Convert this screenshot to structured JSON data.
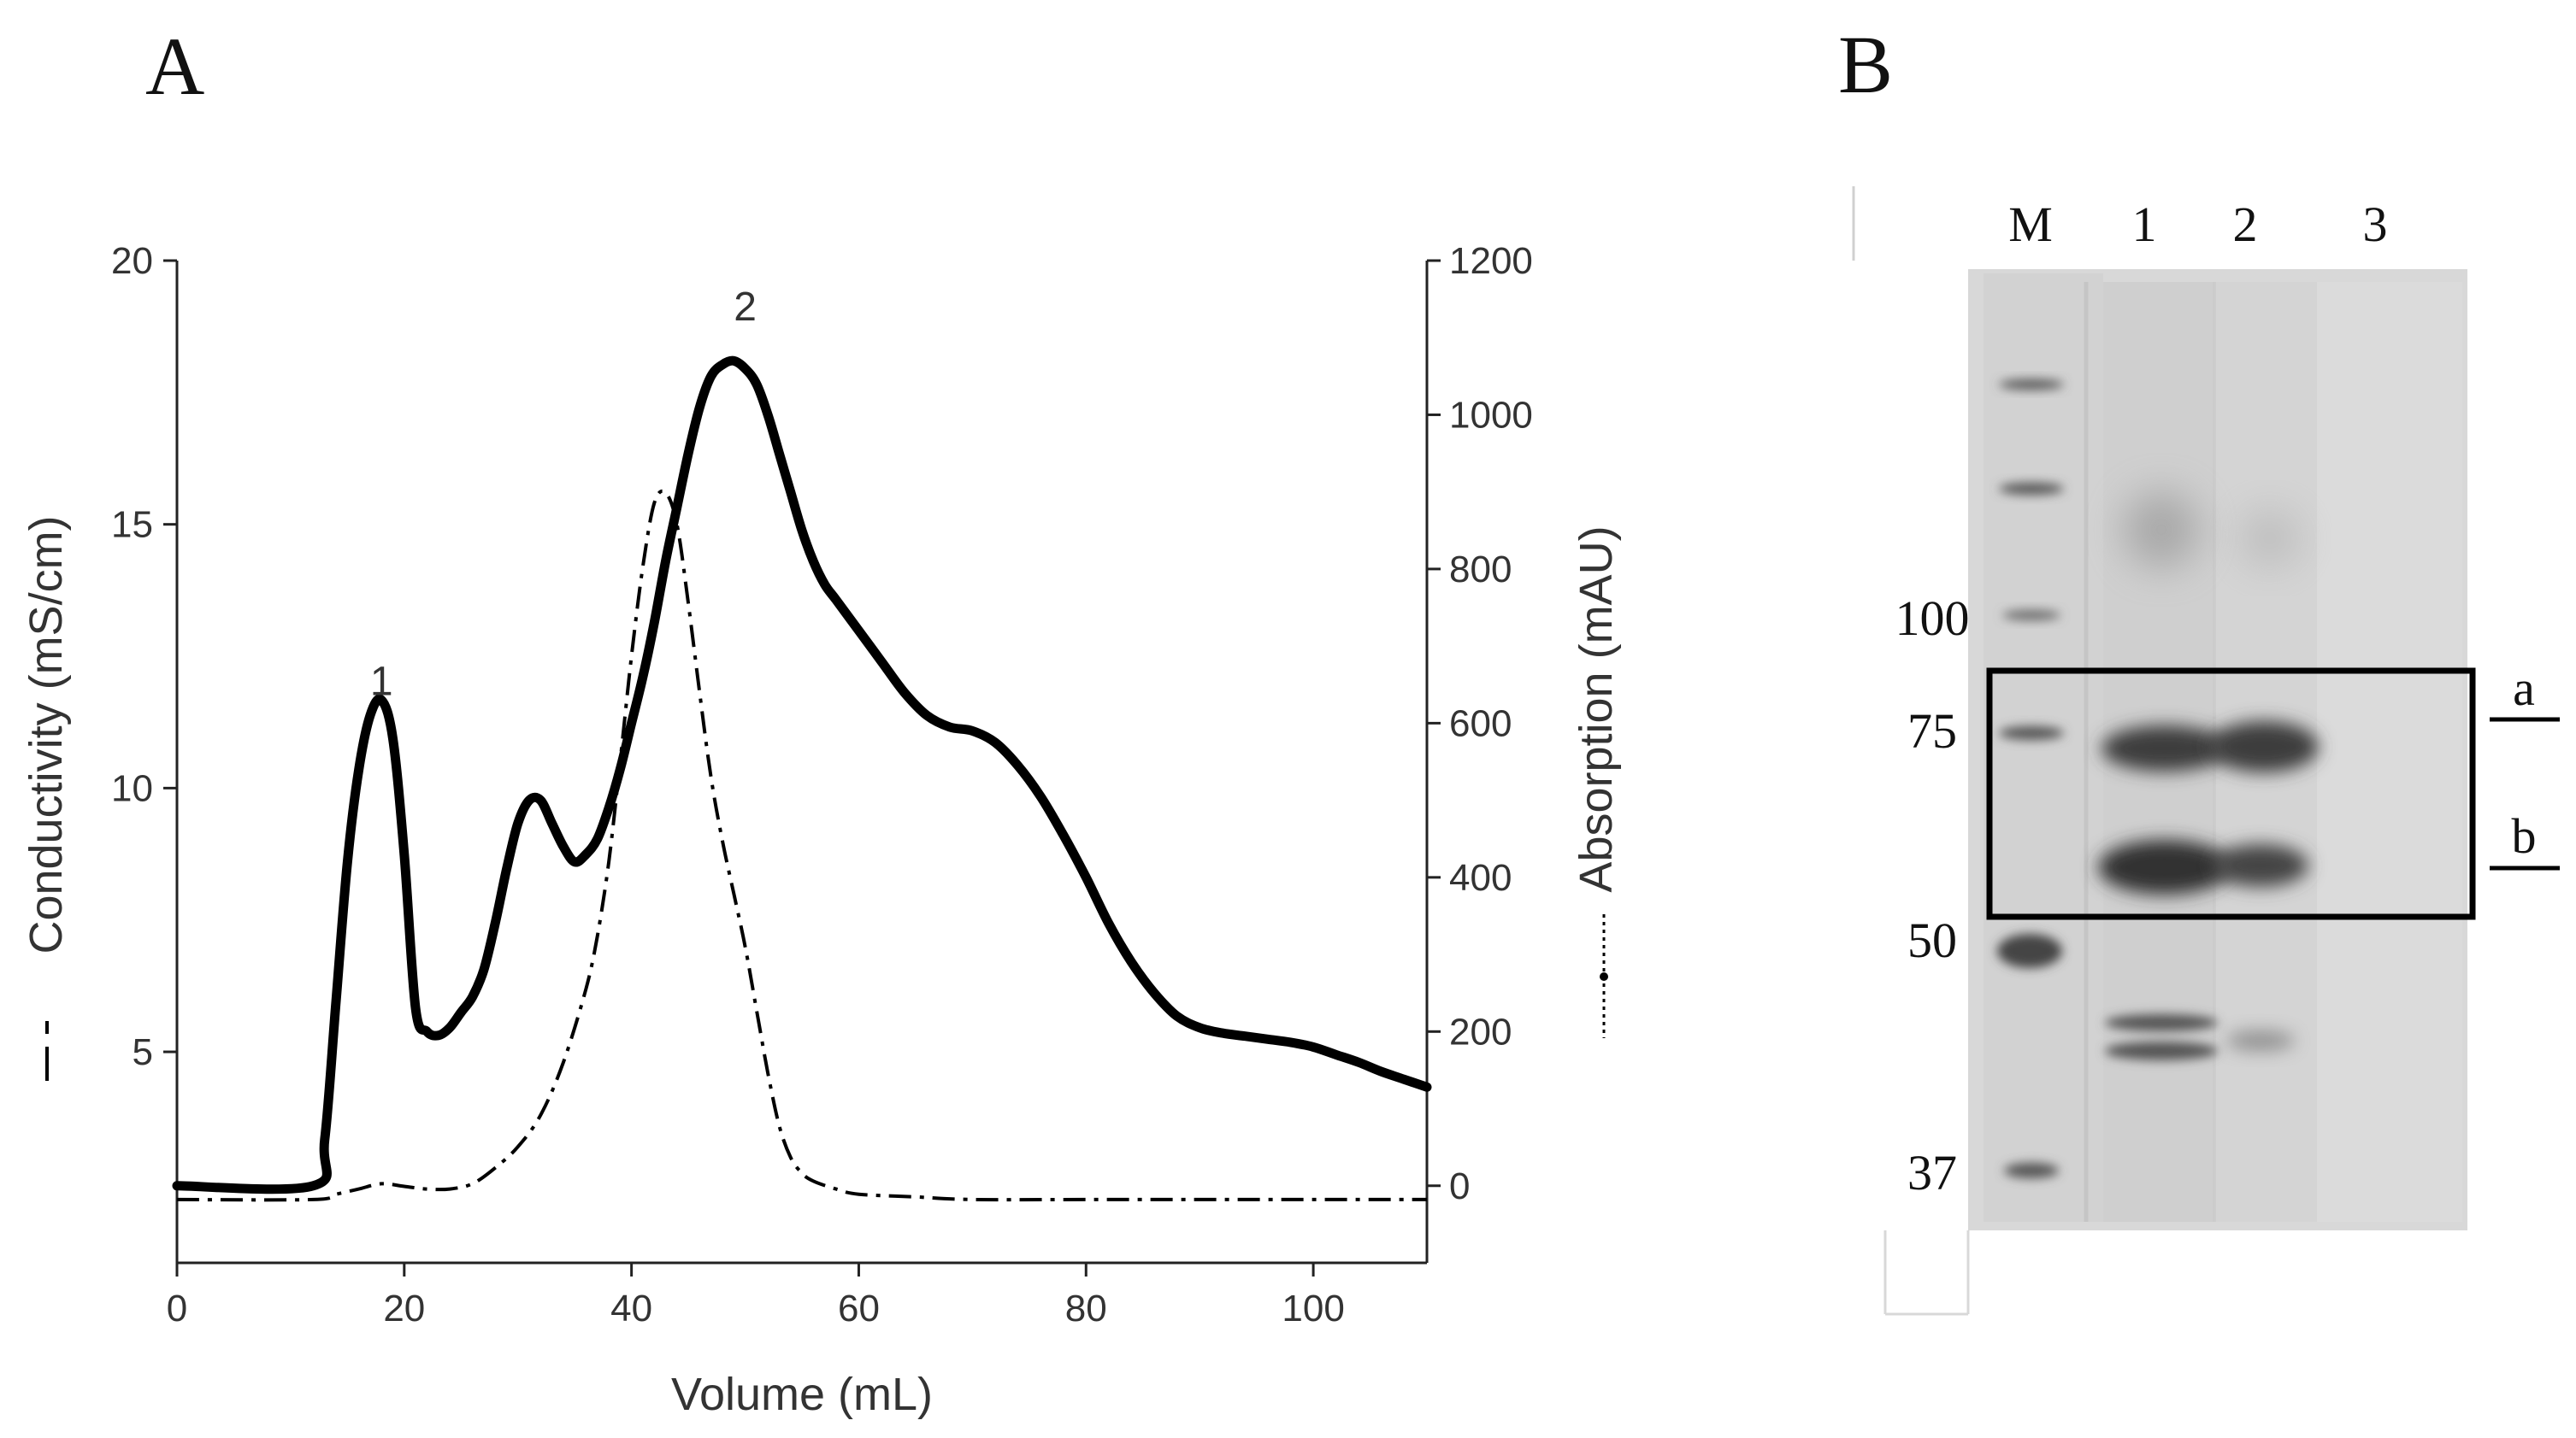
{
  "panels": {
    "a": "A",
    "b": "B"
  },
  "chart_data": [
    {
      "type": "line",
      "panel": "A",
      "title": "",
      "xlabel": "Volume (mL)",
      "ylabel_left": "Conductivity (mS/cm)",
      "ylabel_right": "Absorption (mAU)",
      "xlim": [
        0,
        110
      ],
      "ylim_left": [
        1,
        20
      ],
      "ylim_right": [
        -100,
        1200
      ],
      "x_ticks": [
        0,
        20,
        40,
        60,
        80,
        100
      ],
      "y_left_ticks": [
        5,
        10,
        15,
        20
      ],
      "y_right_ticks": [
        0,
        200,
        400,
        600,
        800,
        1000,
        1200
      ],
      "peak_labels": [
        {
          "label": "1",
          "x": 18,
          "y": 11.2
        },
        {
          "label": "2",
          "x": 50,
          "y": 18.3
        }
      ],
      "series": [
        {
          "name": "Absorption (mAU)",
          "axis": "right",
          "style": "solid-thick",
          "x": [
            0,
            12,
            13,
            14,
            15,
            16,
            17,
            18,
            19,
            20,
            21,
            22,
            23,
            24,
            25,
            26,
            27,
            28,
            29,
            30,
            31,
            32,
            33,
            34,
            35,
            36,
            37,
            38,
            39,
            40,
            41,
            42,
            43,
            44,
            45,
            46,
            47,
            48,
            49,
            50,
            51,
            52,
            53,
            54,
            55,
            56,
            57,
            58,
            60,
            62,
            64,
            66,
            68,
            70,
            72,
            74,
            76,
            78,
            80,
            82,
            84,
            86,
            88,
            90,
            92,
            94,
            96,
            98,
            100,
            102,
            104,
            106,
            108,
            110
          ],
          "values": [
            0,
            0,
            60,
            240,
            420,
            540,
            610,
            630,
            580,
            430,
            230,
            200,
            195,
            205,
            225,
            245,
            280,
            340,
            410,
            470,
            500,
            500,
            470,
            440,
            420,
            430,
            450,
            490,
            540,
            600,
            660,
            730,
            810,
            880,
            950,
            1010,
            1050,
            1065,
            1070,
            1060,
            1040,
            1000,
            950,
            900,
            850,
            810,
            780,
            760,
            720,
            680,
            640,
            610,
            595,
            590,
            575,
            545,
            505,
            455,
            400,
            340,
            290,
            250,
            220,
            205,
            198,
            194,
            190,
            186,
            180,
            170,
            160,
            148,
            138,
            128
          ]
        },
        {
          "name": "Conductivity (mS/cm)",
          "axis": "left",
          "style": "dash-dot",
          "x": [
            0,
            12,
            14,
            16,
            18,
            20,
            22,
            24,
            26,
            28,
            30,
            32,
            34,
            36,
            37,
            38,
            39,
            40,
            41,
            42,
            43,
            44,
            45,
            46,
            47,
            48,
            49,
            50,
            51,
            52,
            53,
            54,
            55,
            56,
            58,
            60,
            65,
            70,
            80,
            90,
            100,
            110
          ],
          "values": [
            2.2,
            2.2,
            2.3,
            2.4,
            2.5,
            2.45,
            2.4,
            2.4,
            2.5,
            2.8,
            3.2,
            3.8,
            4.8,
            6.2,
            7.2,
            8.6,
            10.5,
            12.5,
            14.2,
            15.4,
            15.6,
            15.0,
            13.5,
            11.8,
            10.2,
            9.0,
            8.0,
            7.0,
            5.8,
            4.6,
            3.6,
            3.0,
            2.7,
            2.55,
            2.4,
            2.3,
            2.25,
            2.2,
            2.2,
            2.2,
            2.2,
            2.2
          ]
        }
      ]
    },
    {
      "type": "gel",
      "panel": "B",
      "lane_labels": [
        "M",
        "1",
        "2",
        "3"
      ],
      "marker_labels": [
        "100",
        "75",
        "50",
        "37"
      ],
      "band_labels": [
        "a",
        "b"
      ]
    }
  ]
}
